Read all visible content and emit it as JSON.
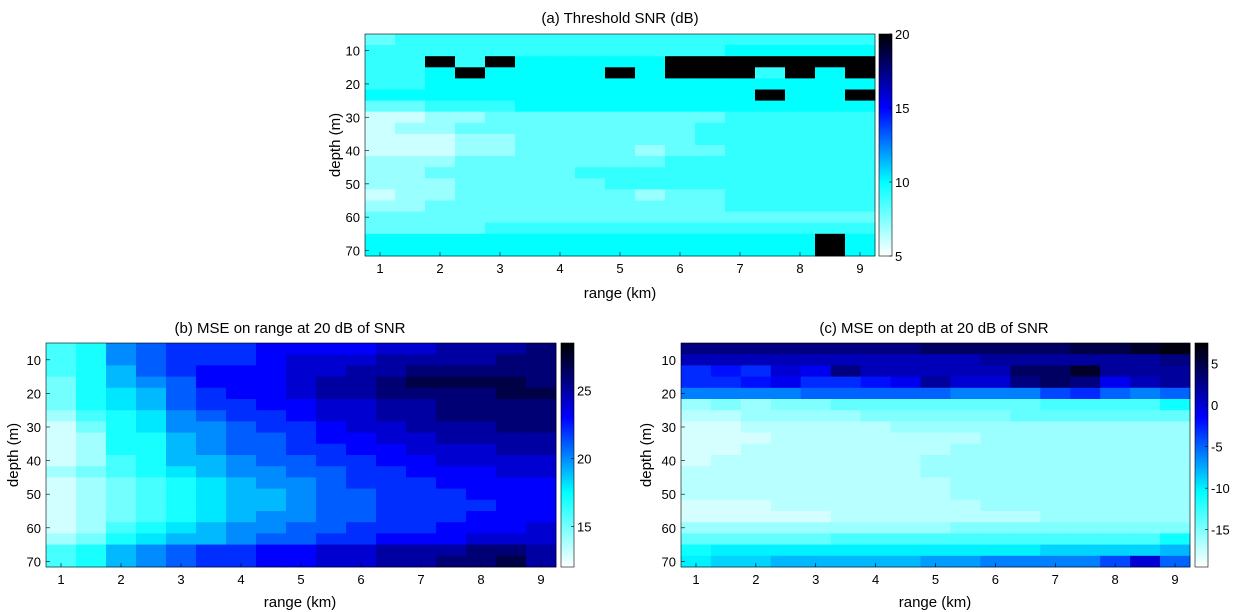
{
  "chart_data": [
    {
      "id": "a",
      "type": "heatmap",
      "title": "(a) Threshold SNR (dB)",
      "xlabel": "range (km)",
      "ylabel": "depth (m)",
      "xticks": [
        "1",
        "2",
        "3",
        "4",
        "5",
        "6",
        "7",
        "8",
        "9"
      ],
      "yticks": [
        "10",
        "20",
        "30",
        "40",
        "50",
        "60",
        "70"
      ],
      "colorbar_ticks": [
        "5",
        "10",
        "15",
        "20"
      ],
      "clim": [
        5,
        20
      ],
      "colormap": [
        "#ffffff",
        "#00ffff",
        "#0000ff",
        "#000000"
      ],
      "rows": [
        [
          8,
          9,
          9,
          9,
          9,
          9,
          9,
          9,
          9,
          9,
          9,
          9,
          9,
          9,
          9,
          9,
          9
        ],
        [
          9,
          9,
          9,
          9,
          9,
          9,
          9,
          9,
          9,
          9,
          9,
          9,
          10,
          10,
          10,
          10,
          10
        ],
        [
          9,
          9,
          20,
          9,
          20,
          10,
          10,
          10,
          10,
          10,
          20,
          20,
          20,
          20,
          20,
          20,
          20
        ],
        [
          9,
          9,
          10,
          20,
          10,
          10,
          10,
          10,
          20,
          10,
          20,
          20,
          20,
          9,
          20,
          10,
          20
        ],
        [
          9,
          9,
          10,
          10,
          10,
          10,
          10,
          10,
          10,
          10,
          10,
          10,
          10,
          10,
          10,
          10,
          10
        ],
        [
          10,
          10,
          10,
          10,
          10,
          10,
          10,
          10,
          10,
          10,
          10,
          10,
          10,
          20,
          10,
          10,
          20
        ],
        [
          8,
          8,
          9,
          9,
          9,
          10,
          10,
          10,
          10,
          10,
          10,
          10,
          10,
          10,
          10,
          10,
          10
        ],
        [
          6,
          6,
          7,
          7,
          8,
          8,
          8,
          8,
          8,
          8,
          8,
          8,
          9,
          9,
          9,
          9,
          9
        ],
        [
          6,
          7,
          7,
          8,
          8,
          8,
          8,
          8,
          8,
          8,
          8,
          9,
          9,
          9,
          9,
          9,
          9
        ],
        [
          6,
          6,
          6,
          7,
          7,
          8,
          8,
          8,
          8,
          8,
          8,
          9,
          9,
          9,
          9,
          9,
          9
        ],
        [
          6,
          6,
          6,
          7,
          7,
          8,
          8,
          8,
          8,
          7,
          8,
          8,
          9,
          9,
          9,
          9,
          9
        ],
        [
          7,
          7,
          7,
          8,
          8,
          8,
          8,
          8,
          8,
          8,
          9,
          9,
          9,
          9,
          9,
          9,
          9
        ],
        [
          7,
          7,
          8,
          8,
          8,
          8,
          8,
          9,
          9,
          9,
          9,
          9,
          9,
          9,
          9,
          9,
          9
        ],
        [
          7,
          7,
          7,
          8,
          8,
          8,
          8,
          8,
          9,
          9,
          9,
          9,
          9,
          9,
          9,
          9,
          9
        ],
        [
          6,
          7,
          7,
          8,
          8,
          8,
          8,
          8,
          8,
          7,
          8,
          8,
          9,
          9,
          9,
          9,
          9
        ],
        [
          7,
          7,
          8,
          8,
          8,
          8,
          8,
          8,
          8,
          8,
          8,
          8,
          9,
          9,
          9,
          9,
          9
        ],
        [
          8,
          8,
          8,
          8,
          8,
          8,
          8,
          8,
          8,
          8,
          8,
          8,
          8,
          8,
          8,
          8,
          8
        ],
        [
          8,
          8,
          8,
          8,
          9,
          9,
          9,
          9,
          9,
          9,
          9,
          9,
          9,
          9,
          9,
          9,
          9
        ],
        [
          10,
          10,
          10,
          10,
          10,
          10,
          10,
          10,
          10,
          10,
          10,
          10,
          10,
          10,
          10,
          20,
          10
        ],
        [
          10,
          10,
          10,
          10,
          10,
          10,
          10,
          10,
          10,
          10,
          10,
          10,
          10,
          10,
          10,
          20,
          10
        ]
      ]
    },
    {
      "id": "b",
      "type": "heatmap",
      "title": "(b) MSE on range at 20 dB of SNR",
      "xlabel": "range (km)",
      "ylabel": "depth (m)",
      "xticks": [
        "1",
        "2",
        "3",
        "4",
        "5",
        "6",
        "7",
        "8",
        "9"
      ],
      "yticks": [
        "10",
        "20",
        "30",
        "40",
        "50",
        "60",
        "70"
      ],
      "colorbar_ticks": [
        "15",
        "20",
        "25"
      ],
      "clim": [
        12,
        28.5
      ],
      "colormap": [
        "#ffffff",
        "#00ffff",
        "#0000ff",
        "#000000"
      ],
      "rows": [
        [
          16,
          17,
          20,
          21,
          22,
          22,
          22,
          23,
          23,
          23,
          23,
          24,
          24,
          25,
          25,
          25,
          26
        ],
        [
          16,
          17,
          20,
          21,
          22,
          22,
          22,
          23,
          24,
          24,
          24,
          25,
          25,
          25,
          25,
          26,
          26
        ],
        [
          16,
          17,
          19,
          21,
          22,
          23,
          23,
          23,
          24,
          24,
          25,
          25,
          26,
          26,
          26,
          26,
          26
        ],
        [
          15,
          17,
          19,
          20,
          21,
          23,
          23,
          23,
          24,
          25,
          25,
          26,
          27,
          27,
          27,
          27,
          26
        ],
        [
          15,
          17,
          18,
          19,
          21,
          22,
          23,
          23,
          24,
          25,
          25,
          26,
          26,
          26,
          26,
          27,
          27
        ],
        [
          15,
          17,
          18,
          19,
          21,
          22,
          22,
          23,
          23,
          24,
          24,
          25,
          25,
          26,
          26,
          26,
          26
        ],
        [
          14,
          16,
          17,
          18,
          20,
          21,
          22,
          22,
          23,
          24,
          24,
          25,
          25,
          26,
          26,
          26,
          26
        ],
        [
          13,
          15,
          17,
          18,
          20,
          20,
          21,
          22,
          22,
          23,
          24,
          24,
          25,
          25,
          25,
          26,
          26
        ],
        [
          13,
          14,
          17,
          17,
          19,
          20,
          21,
          21,
          22,
          23,
          23,
          24,
          24,
          25,
          25,
          25,
          25
        ],
        [
          13,
          14,
          17,
          17,
          19,
          20,
          21,
          21,
          22,
          22,
          23,
          23,
          24,
          24,
          24,
          25,
          25
        ],
        [
          13,
          14,
          16,
          17,
          19,
          19,
          20,
          21,
          21,
          22,
          22,
          23,
          23,
          24,
          24,
          24,
          24
        ],
        [
          14,
          15,
          16,
          17,
          18,
          19,
          20,
          20,
          21,
          21,
          22,
          22,
          23,
          23,
          23,
          24,
          24
        ],
        [
          13,
          14,
          15,
          16,
          17,
          18,
          19,
          20,
          20,
          21,
          22,
          22,
          22,
          23,
          23,
          23,
          23
        ],
        [
          13,
          14,
          15,
          16,
          17,
          18,
          19,
          19,
          20,
          21,
          21,
          22,
          22,
          22,
          23,
          23,
          23
        ],
        [
          13,
          14,
          15,
          16,
          17,
          18,
          19,
          19,
          20,
          21,
          21,
          22,
          22,
          22,
          22,
          23,
          23
        ],
        [
          13,
          14,
          15,
          16,
          17,
          18,
          19,
          20,
          20,
          21,
          21,
          22,
          22,
          22,
          23,
          23,
          23
        ],
        [
          13,
          14,
          16,
          17,
          18,
          19,
          20,
          20,
          21,
          21,
          22,
          22,
          22,
          23,
          23,
          23,
          24
        ],
        [
          14,
          15,
          17,
          18,
          19,
          19,
          20,
          21,
          21,
          22,
          22,
          23,
          23,
          23,
          24,
          24,
          24
        ],
        [
          16,
          17,
          19,
          20,
          21,
          22,
          22,
          23,
          23,
          24,
          24,
          25,
          25,
          25,
          26,
          26,
          25
        ],
        [
          16,
          17,
          19,
          20,
          21,
          22,
          22,
          23,
          23,
          24,
          24,
          25,
          25,
          26,
          26,
          27,
          25
        ]
      ]
    },
    {
      "id": "c",
      "type": "heatmap",
      "title": "(c) MSE on depth at 20 dB of SNR",
      "xlabel": "range (km)",
      "ylabel": "depth (m)",
      "xticks": [
        "1",
        "2",
        "3",
        "4",
        "5",
        "6",
        "7",
        "8",
        "9"
      ],
      "yticks": [
        "10",
        "20",
        "30",
        "40",
        "50",
        "60",
        "70"
      ],
      "colorbar_ticks": [
        "5",
        "0",
        "-5",
        "-10",
        "-15"
      ],
      "clim": [
        -19.5,
        7.5
      ],
      "colormap": [
        "#ffffff",
        "#00ffff",
        "#0000ff",
        "#000000"
      ],
      "rows": [
        [
          3,
          3,
          3,
          3,
          3,
          3,
          3,
          3,
          4,
          4,
          4,
          4,
          4,
          5,
          5,
          6,
          7
        ],
        [
          1,
          1,
          1,
          1,
          1,
          1,
          1,
          1,
          1,
          1,
          2,
          2,
          2,
          2,
          2,
          2,
          3
        ],
        [
          -3,
          -2,
          -3,
          0,
          -1,
          3,
          1,
          1,
          1,
          1,
          1,
          4,
          4,
          6,
          2,
          2,
          2
        ],
        [
          -3,
          -3,
          -2,
          -1,
          -3,
          -3,
          -2,
          -1,
          2,
          0,
          0,
          3,
          4,
          3,
          -1,
          1,
          2
        ],
        [
          -6,
          -6,
          -6,
          -6,
          -5,
          -5,
          -5,
          -5,
          -5,
          -6,
          -6,
          -6,
          -4,
          -3,
          -5,
          -6,
          -5
        ],
        [
          -16,
          -15,
          -16,
          -15,
          -15,
          -14,
          -14,
          -14,
          -14,
          -14,
          -14,
          -14,
          -13,
          -13,
          -13,
          -13,
          -11
        ],
        [
          -17,
          -17,
          -16,
          -16,
          -16,
          -16,
          -15,
          -15,
          -15,
          -15,
          -15,
          -14,
          -14,
          -14,
          -14,
          -14,
          -14
        ],
        [
          -18,
          -18,
          -17,
          -17,
          -17,
          -17,
          -17,
          -16,
          -16,
          -16,
          -16,
          -16,
          -16,
          -16,
          -16,
          -16,
          -16
        ],
        [
          -18,
          -18,
          -18,
          -17,
          -17,
          -17,
          -17,
          -17,
          -17,
          -17,
          -16,
          -16,
          -16,
          -16,
          -16,
          -16,
          -16
        ],
        [
          -18,
          -18,
          -17,
          -17,
          -17,
          -17,
          -17,
          -17,
          -17,
          -16,
          -16,
          -16,
          -16,
          -16,
          -16,
          -16,
          -16
        ],
        [
          -18,
          -17,
          -17,
          -17,
          -17,
          -17,
          -17,
          -17,
          -16,
          -16,
          -16,
          -16,
          -16,
          -16,
          -16,
          -16,
          -16
        ],
        [
          -17,
          -17,
          -17,
          -17,
          -17,
          -17,
          -17,
          -17,
          -16,
          -16,
          -16,
          -16,
          -16,
          -16,
          -16,
          -16,
          -16
        ],
        [
          -17,
          -17,
          -17,
          -17,
          -17,
          -17,
          -17,
          -17,
          -17,
          -16,
          -16,
          -16,
          -16,
          -16,
          -16,
          -16,
          -16
        ],
        [
          -17,
          -17,
          -17,
          -17,
          -17,
          -17,
          -17,
          -17,
          -17,
          -16,
          -16,
          -16,
          -16,
          -16,
          -16,
          -16,
          -16
        ],
        [
          -18,
          -18,
          -18,
          -17,
          -17,
          -17,
          -17,
          -17,
          -17,
          -17,
          -16,
          -16,
          -16,
          -16,
          -16,
          -16,
          -16
        ],
        [
          -18,
          -18,
          -18,
          -18,
          -18,
          -17,
          -17,
          -17,
          -17,
          -17,
          -17,
          -17,
          -16,
          -16,
          -16,
          -16,
          -16
        ],
        [
          -16,
          -16,
          -16,
          -16,
          -16,
          -16,
          -16,
          -16,
          -16,
          -15,
          -15,
          -15,
          -15,
          -15,
          -15,
          -15,
          -15
        ],
        [
          -14,
          -14,
          -14,
          -14,
          -14,
          -13,
          -13,
          -13,
          -13,
          -13,
          -13,
          -13,
          -13,
          -13,
          -13,
          -13,
          -11
        ],
        [
          -11,
          -10,
          -10,
          -10,
          -10,
          -10,
          -10,
          -10,
          -10,
          -10,
          -10,
          -10,
          -9,
          -9,
          -9,
          -9,
          -8
        ],
        [
          -10,
          -9,
          -9,
          -8,
          -8,
          -8,
          -8,
          -8,
          -7,
          -7,
          -6,
          -6,
          -6,
          -6,
          -4,
          0,
          -5
        ]
      ]
    }
  ]
}
